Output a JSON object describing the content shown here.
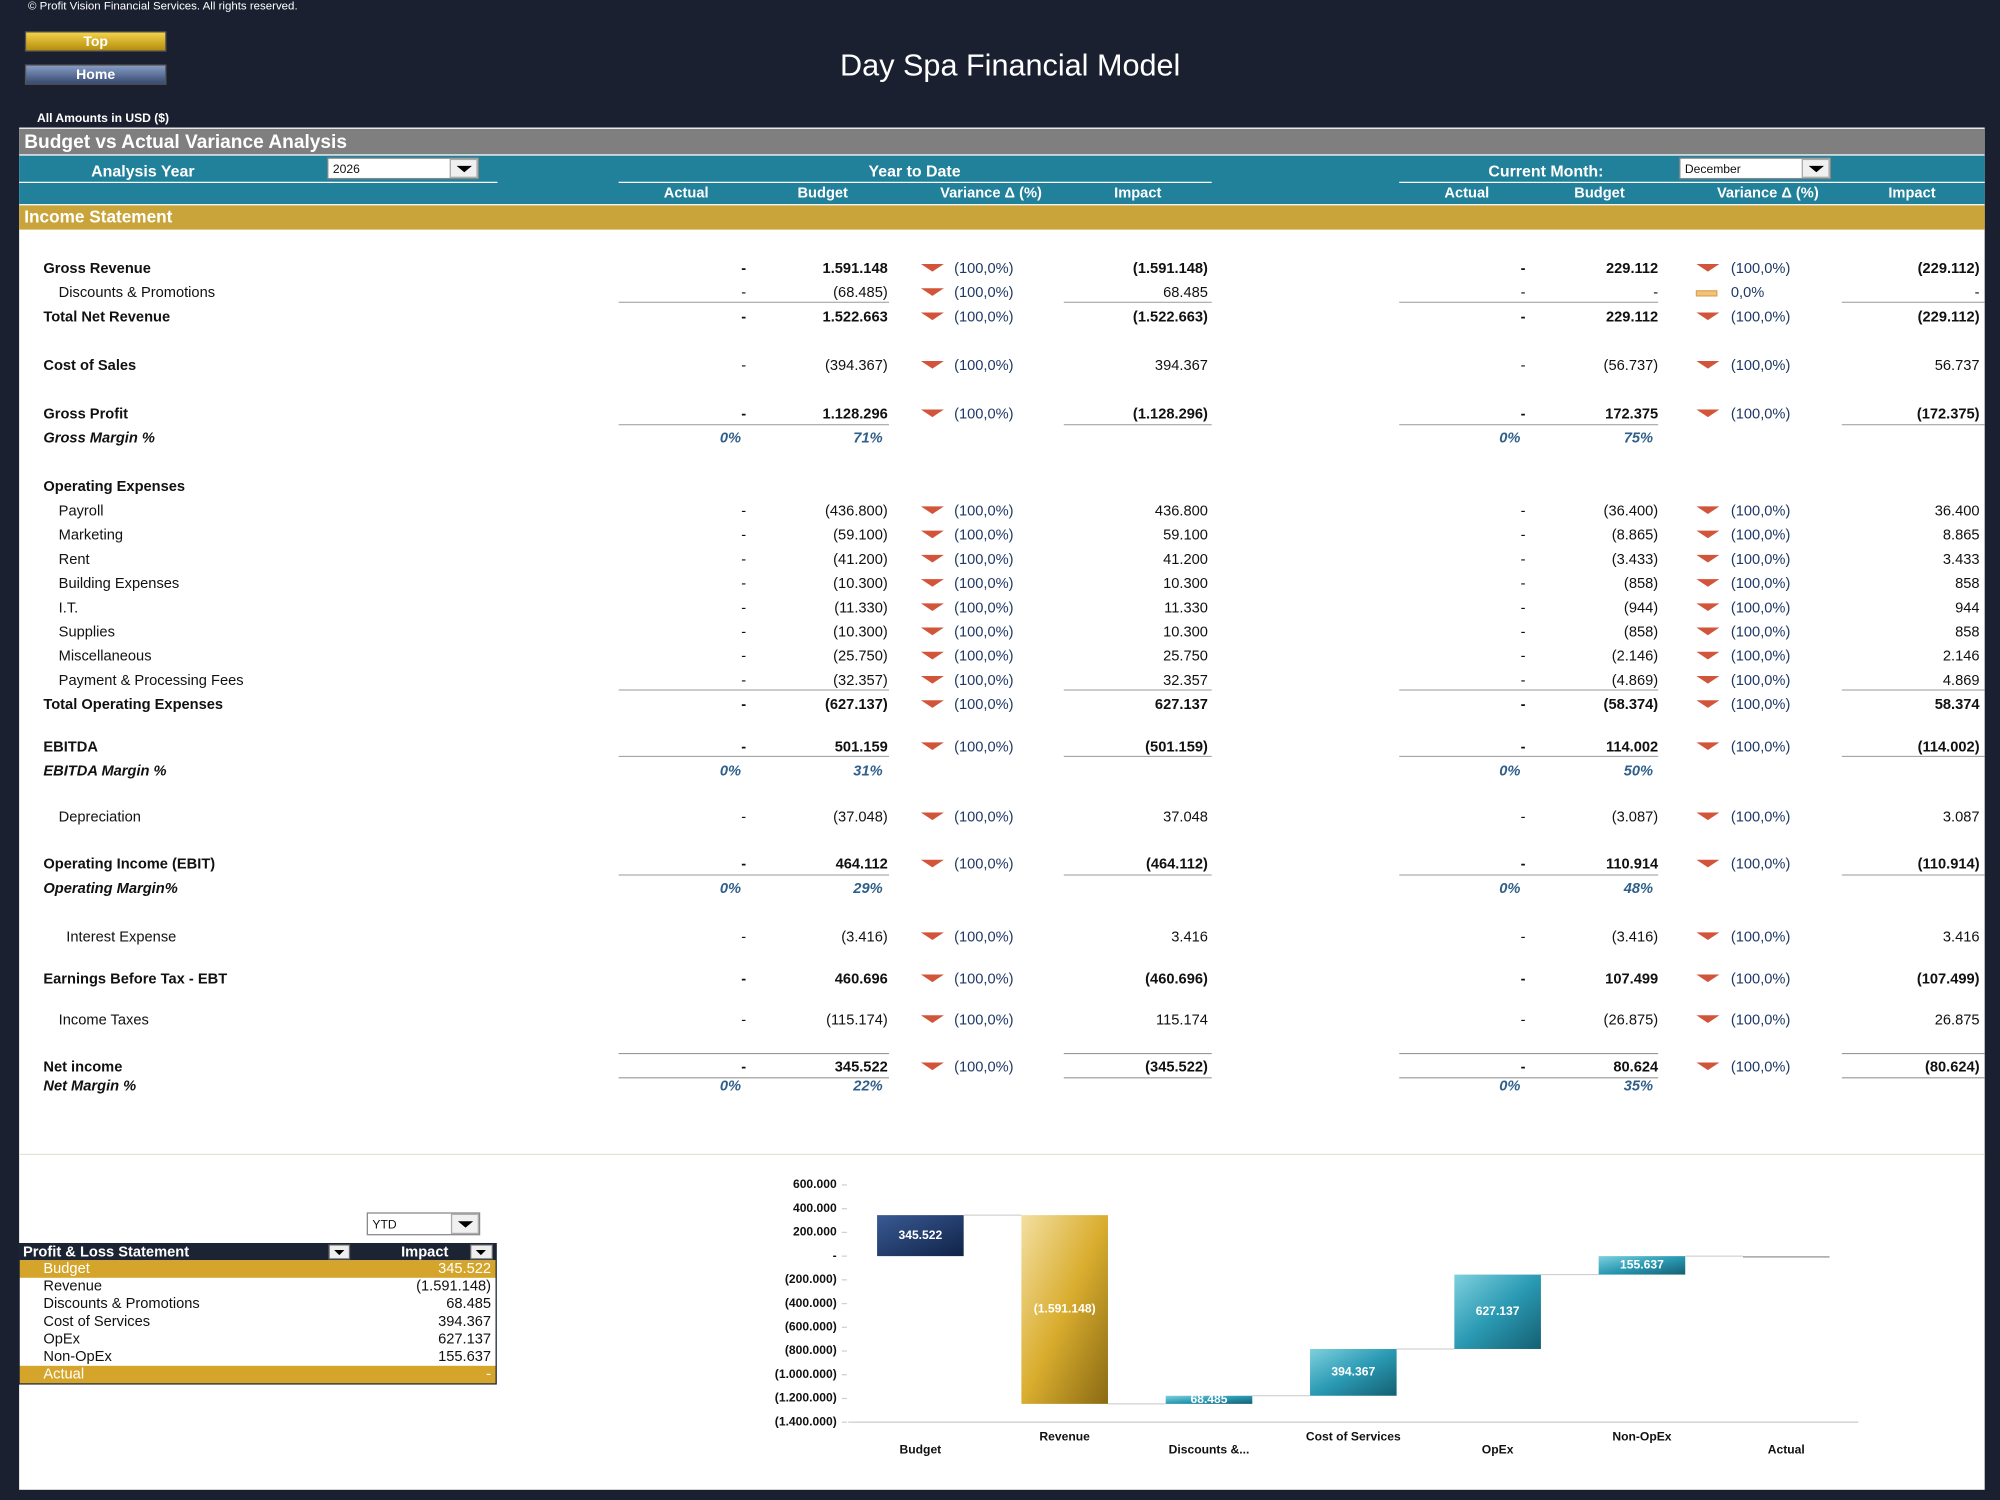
{
  "copyright": "© Profit Vision Financial Services. All rights reserved.",
  "buttons": [
    "Top",
    "Home"
  ],
  "title": "Day Spa Financial Model",
  "currency_note": "All Amounts in  USD ($)",
  "section_title": "Budget vs Actual Variance Analysis",
  "analysis_year_label": "Analysis Year",
  "analysis_year": "2026",
  "ytd_header": "Year to Date",
  "current_month_label": "Current Month:",
  "current_month": "December",
  "columns": [
    "Actual",
    "Budget",
    "Variance Δ  (%)",
    "Impact"
  ],
  "income_statement_title": "Income Statement",
  "rows": [
    {
      "label": "Gross Revenue",
      "ytd": [
        "-",
        "1.591.148",
        "(100,0%)",
        "(1.591.148)"
      ],
      "month": [
        "-",
        "229.112",
        "(100,0%)",
        "(229.112)"
      ]
    },
    {
      "label": "Discounts & Promotions",
      "ytd": [
        "-",
        "(68.485)",
        "(100,0%)",
        "68.485"
      ],
      "month": [
        "-",
        "-",
        "0,0%",
        "-"
      ]
    },
    {
      "label": "Total Net Revenue",
      "ytd": [
        "-",
        "1.522.663",
        "(100,0%)",
        "(1.522.663)"
      ],
      "month": [
        "-",
        "229.112",
        "(100,0%)",
        "(229.112)"
      ]
    },
    {
      "label": "Cost of Sales",
      "ytd": [
        "-",
        "(394.367)",
        "(100,0%)",
        "394.367"
      ],
      "month": [
        "-",
        "(56.737)",
        "(100,0%)",
        "56.737"
      ]
    },
    {
      "label": "Gross Profit",
      "ytd": [
        "-",
        "1.128.296",
        "(100,0%)",
        "(1.128.296)"
      ],
      "month": [
        "-",
        "172.375",
        "(100,0%)",
        "(172.375)"
      ]
    },
    {
      "label": "Gross Margin %",
      "ytd": [
        "0%",
        "71%"
      ],
      "month": [
        "0%",
        "75%"
      ]
    },
    {
      "label": "Operating Expenses"
    },
    {
      "label": "Payroll",
      "ytd": [
        "-",
        "(436.800)",
        "(100,0%)",
        "436.800"
      ],
      "month": [
        "-",
        "(36.400)",
        "(100,0%)",
        "36.400"
      ]
    },
    {
      "label": "Marketing",
      "ytd": [
        "-",
        "(59.100)",
        "(100,0%)",
        "59.100"
      ],
      "month": [
        "-",
        "(8.865)",
        "(100,0%)",
        "8.865"
      ]
    },
    {
      "label": "Rent",
      "ytd": [
        "-",
        "(41.200)",
        "(100,0%)",
        "41.200"
      ],
      "month": [
        "-",
        "(3.433)",
        "(100,0%)",
        "3.433"
      ]
    },
    {
      "label": "Building Expenses",
      "ytd": [
        "-",
        "(10.300)",
        "(100,0%)",
        "10.300"
      ],
      "month": [
        "-",
        "(858)",
        "(100,0%)",
        "858"
      ]
    },
    {
      "label": "I.T.",
      "ytd": [
        "-",
        "(11.330)",
        "(100,0%)",
        "11.330"
      ],
      "month": [
        "-",
        "(944)",
        "(100,0%)",
        "944"
      ]
    },
    {
      "label": "Supplies",
      "ytd": [
        "-",
        "(10.300)",
        "(100,0%)",
        "10.300"
      ],
      "month": [
        "-",
        "(858)",
        "(100,0%)",
        "858"
      ]
    },
    {
      "label": "Miscellaneous",
      "ytd": [
        "-",
        "(25.750)",
        "(100,0%)",
        "25.750"
      ],
      "month": [
        "-",
        "(2.146)",
        "(100,0%)",
        "2.146"
      ]
    },
    {
      "label": "Payment & Processing Fees",
      "ytd": [
        "-",
        "(32.357)",
        "(100,0%)",
        "32.357"
      ],
      "month": [
        "-",
        "(4.869)",
        "(100,0%)",
        "4.869"
      ]
    },
    {
      "label": "Total Operating Expenses",
      "ytd": [
        "-",
        "(627.137)",
        "(100,0%)",
        "627.137"
      ],
      "month": [
        "-",
        "(58.374)",
        "(100,0%)",
        "58.374"
      ]
    },
    {
      "label": "EBITDA",
      "ytd": [
        "-",
        "501.159",
        "(100,0%)",
        "(501.159)"
      ],
      "month": [
        "-",
        "114.002",
        "(100,0%)",
        "(114.002)"
      ]
    },
    {
      "label": "EBITDA Margin %",
      "ytd": [
        "0%",
        "31%"
      ],
      "month": [
        "0%",
        "50%"
      ]
    },
    {
      "label": "Depreciation",
      "ytd": [
        "-",
        "(37.048)",
        "(100,0%)",
        "37.048"
      ],
      "month": [
        "-",
        "(3.087)",
        "(100,0%)",
        "3.087"
      ]
    },
    {
      "label": "Operating Income (EBIT)",
      "ytd": [
        "-",
        "464.112",
        "(100,0%)",
        "(464.112)"
      ],
      "month": [
        "-",
        "110.914",
        "(100,0%)",
        "(110.914)"
      ]
    },
    {
      "label": "Operating Margin%",
      "ytd": [
        "0%",
        "29%"
      ],
      "month": [
        "0%",
        "48%"
      ]
    },
    {
      "label": "Interest Expense",
      "ytd": [
        "-",
        "(3.416)",
        "(100,0%)",
        "3.416"
      ],
      "month": [
        "-",
        "(3.416)",
        "(100,0%)",
        "3.416"
      ]
    },
    {
      "label": "Earnings Before Tax - EBT",
      "ytd": [
        "-",
        "460.696",
        "(100,0%)",
        "(460.696)"
      ],
      "month": [
        "-",
        "107.499",
        "(100,0%)",
        "(107.499)"
      ]
    },
    {
      "label": "Income Taxes",
      "ytd": [
        "-",
        "(115.174)",
        "(100,0%)",
        "115.174"
      ],
      "month": [
        "-",
        "(26.875)",
        "(100,0%)",
        "26.875"
      ]
    },
    {
      "label": "Net income",
      "ytd": [
        "-",
        "345.522",
        "(100,0%)",
        "(345.522)"
      ],
      "month": [
        "-",
        "80.624",
        "(100,0%)",
        "(80.624)"
      ]
    },
    {
      "label": "Net Margin %",
      "ytd": [
        "0%",
        "22%"
      ],
      "month": [
        "0%",
        "35%"
      ]
    }
  ],
  "pl_table": {
    "dropdown": "YTD",
    "headers": [
      "Profit & Loss Statement",
      "Impact"
    ],
    "rows": [
      [
        "Budget",
        "345.522"
      ],
      [
        "Revenue",
        "(1.591.148)"
      ],
      [
        "Discounts & Promotions",
        "68.485"
      ],
      [
        "Cost of Services",
        "394.367"
      ],
      [
        "OpEx",
        "627.137"
      ],
      [
        "Non-OpEx",
        "155.637"
      ],
      [
        "Actual",
        "-"
      ]
    ]
  },
  "chart_data": {
    "type": "waterfall",
    "categories": [
      "Budget",
      "Revenue",
      "Discounts &...",
      "Cost of Services",
      "OpEx",
      "Non-OpEx",
      "Actual"
    ],
    "values": [
      345522,
      -1591148,
      68485,
      394367,
      627137,
      155637,
      0
    ],
    "value_labels": [
      "345.522",
      "(1.591.148)",
      "68.485",
      "394.367",
      "627.137",
      "155.637",
      null
    ],
    "colors": [
      "#1f3a6b",
      "#c9a227",
      "#2a8fa6",
      "#2a8fa6",
      "#2a8fa6",
      "#2a8fa6",
      "#a6a6a6"
    ],
    "ylim": [
      -1400000,
      600000
    ],
    "yticks": [
      {
        "value": 600000,
        "label": "600.000"
      },
      {
        "value": 400000,
        "label": "400.000"
      },
      {
        "value": 200000,
        "label": "200.000"
      },
      {
        "value": 0,
        "label": "-"
      },
      {
        "value": -200000,
        "label": "(200.000)"
      },
      {
        "value": -400000,
        "label": "(400.000)"
      },
      {
        "value": -600000,
        "label": "(600.000)"
      },
      {
        "value": -800000,
        "label": "(800.000)"
      },
      {
        "value": -1000000,
        "label": "(1.000.000)"
      },
      {
        "value": -1200000,
        "label": "(1.200.000)"
      },
      {
        "value": -1400000,
        "label": "(1.400.000)"
      }
    ]
  }
}
